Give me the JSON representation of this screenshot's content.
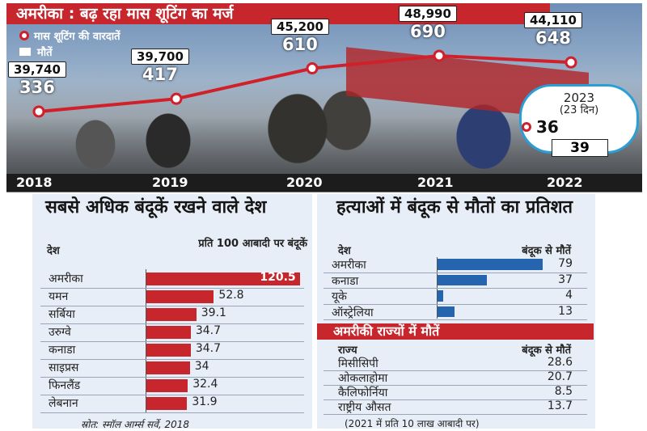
{
  "title": "अमरीका : बढ़ रहा मास शूटिंग का मर्ज",
  "legend": {
    "shootings": "मास शूटिंग की वारदातें",
    "deaths": "मौतें"
  },
  "colors": {
    "red": "#c8262d",
    "blue": "#2565b0",
    "dark": "#1c1c1c"
  },
  "chart_data": [
    {
      "type": "line",
      "x": [
        "2018",
        "2019",
        "2020",
        "2021",
        "2022"
      ],
      "series": [
        {
          "name": "मास शूटिंग की वारदातें",
          "values": [
            336,
            417,
            610,
            690,
            648
          ],
          "labels": [
            "336",
            "417",
            "610",
            "690",
            "648"
          ]
        },
        {
          "name": "मौतें",
          "values": [
            39740,
            39700,
            45200,
            48990,
            44110
          ],
          "labels": [
            "39,740",
            "39,700",
            "45,200",
            "48,990",
            "44,110"
          ]
        }
      ],
      "extra": {
        "year": "2023",
        "period": "(23 दिन)",
        "shootings": "36",
        "deaths": "39"
      }
    },
    {
      "type": "bar",
      "title": "सबसे अधिक बंदूकें रखने वाले देश",
      "col_country": "देश",
      "col_value": "प्रति 100 आबादी पर बंदूकें",
      "categories": [
        "अमरीका",
        "यमन",
        "सर्बिया",
        "उरुग्वे",
        "कनाडा",
        "साइप्रस",
        "फिनलैंड",
        "लेबनान"
      ],
      "values": [
        120.5,
        52.8,
        39.1,
        34.7,
        34.7,
        34,
        32.4,
        31.9
      ],
      "labels": [
        "120.5",
        "52.8",
        "39.1",
        "34.7",
        "34.7",
        "34",
        "32.4",
        "31.9"
      ]
    },
    {
      "type": "bar",
      "title": "हत्याओं में बंदूक से मौतों का प्रतिशत",
      "col_country": "देश",
      "col_value": "बंदूक से मौतें",
      "categories": [
        "अमरीका",
        "कनाडा",
        "यूके",
        "ऑस्ट्रेलिया"
      ],
      "values": [
        79,
        37,
        4,
        13
      ],
      "labels": [
        "79",
        "37",
        "4",
        "13"
      ]
    },
    {
      "type": "table",
      "title": "अमरीकी राज्यों में मौतें",
      "col_state": "राज्य",
      "col_value": "बंदूक से मौतें",
      "rows": [
        {
          "name": "मिसीसिपी",
          "value": "28.6"
        },
        {
          "name": "ओकलाहोमा",
          "value": "20.7"
        },
        {
          "name": "कैलिफोर्निया",
          "value": "8.5"
        },
        {
          "name": "राष्ट्रीय औसत",
          "value": "13.7"
        }
      ],
      "note": "(2021 में प्रति 10 लाख आबादी पर)"
    }
  ],
  "source": "स्रोत: स्मॉल आर्म्स सर्वे, 2018"
}
